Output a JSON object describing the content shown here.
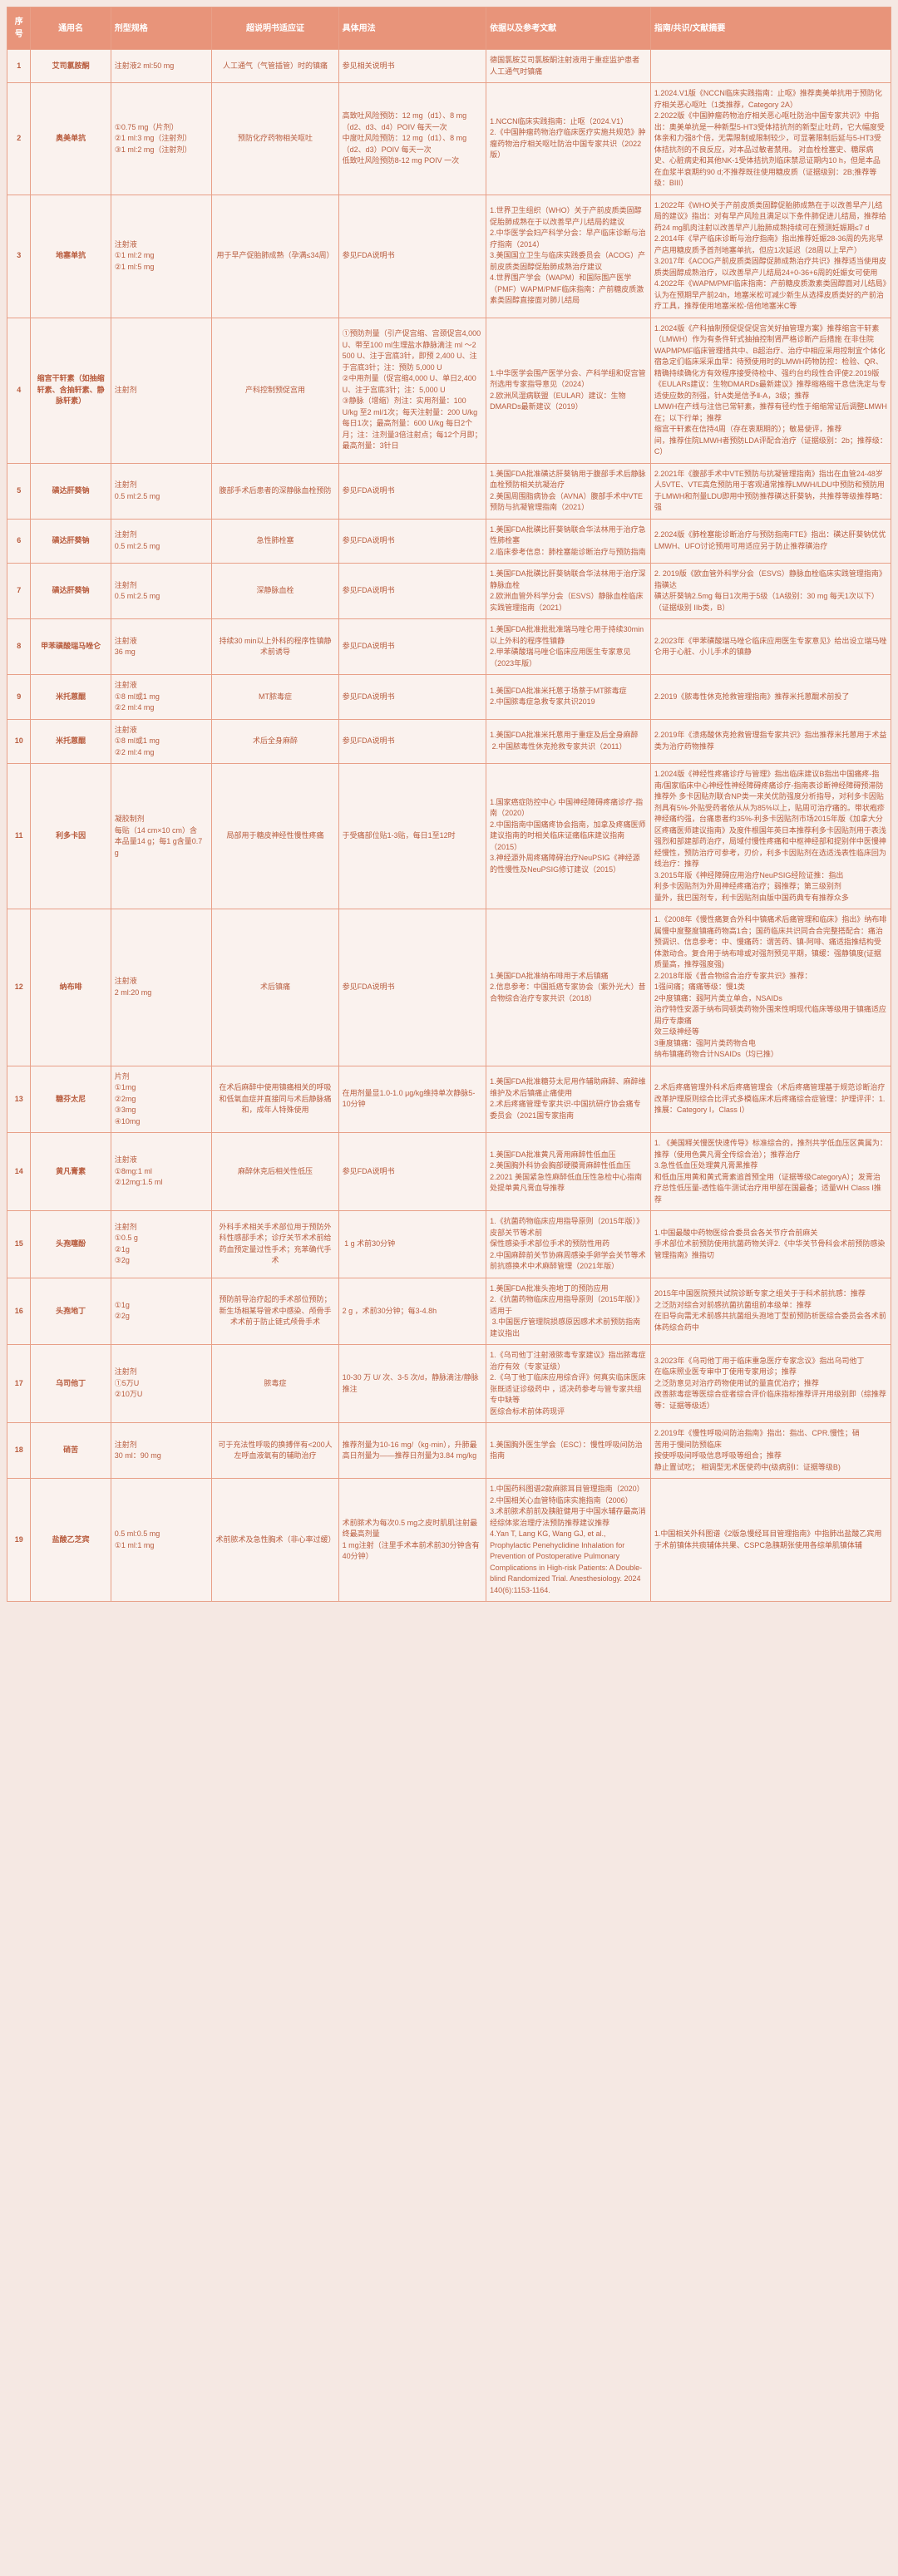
{
  "headers": [
    "序号",
    "通用名",
    "剂型规格",
    "超说明书适应证",
    "具体用法",
    "依据以及参考文献",
    "指南/共识/文献摘要"
  ],
  "rows": [
    {
      "n": "1",
      "name": "艾司氯胺酮",
      "spec": "注射液2 ml:50 mg",
      "ind": "人工通气（气管插管）时的镇痛",
      "usage": "参见相关说明书",
      "ref": "德国氯胺艾司氯胺酮注射液用于重症监护患者人工通气时镇痛",
      "guide": ""
    },
    {
      "n": "2",
      "name": "奥美单抗",
      "spec": "①0.75 mg（片剂）\n②1 ml:3 mg（注射剂）\n③1 ml:2 mg（注射剂）",
      "ind": "预防化疗药物相关呕吐",
      "usage": "高致吐风险预防：12 mg（d1）、8 mg（d2、d3、d4）POIV 每天一次\n中度吐风险预防：12 mg（d1）、8 mg（d2、d3）POIV 每天一次\n低致吐风险预防8-12 mg POIV 一次",
      "ref": "1.NCCN临床实践指南：止呕（2024.V1）\n2.《中国肿瘤药物治疗临床医疗实施共规范》肿瘤药物治疗相关呕吐防治中国专家共识（2022版）",
      "guide": "1.2024.V1版《NCCN临床实践指南：止呕》推荐奥美单抗用于预防化疗相关恶心呕吐（1类推荐，Category 2A）\n2.2022版《中国肿瘤药物治疗相关恶心呕吐防治中国专家共识》中指出：奥美单抗是一种新型5-HT3受体拮抗剂的新型止吐药，它大幅度受体亲和力强8个倍，无需限制或限制较少，可显著限制后延与5-HT3受体拮抗剂的不良反应，对本品过敏者禁用。 对血栓栓塞史、糖尿病史、心脏病史和其他NK-1受体拮抗剂临床禁忌证期内10 h，但是本品在血浆半衰期约90 d;不推荐既往使用糖皮质（证据级别：2B;推荐等级：BIII）"
    },
    {
      "n": "3",
      "name": "地塞单抗",
      "spec": "注射液\n①1 ml:2 mg\n②1 ml:5 mg",
      "ind": "用于早产促胎肺成熟（孕满≤34周）",
      "usage": "参见FDA说明书",
      "ref": "1.世界卫生组织（WHO）关于产前皮质类固醇促胎肺成熟在于以改善早产儿结局的建议\n2.中华医学会妇产科学分会：早产临床诊断与治疗指南（2014）\n3.美国国立卫生与临床实践委员会（ACOG）产前皮质类固醇促胎肺成熟治疗建议\n4.世界围产学会（WAPM）和国际围产医学（PMF）WAPM/PMF临床指南：产前糖皮质激素类固醇直接面对肺儿结局",
      "guide": "1.2022年《WHO关于产前皮质类固醇促胎肺成熟在于以改善早产儿结局的建议》指出：对有早产风险且满足以下条件肺促进儿结局，推荐给药24 mg肌肉注射以改善早产儿胎肺成熟持续可在预测妊娠期≤7 d\n2.2014年《早产临床诊断与治疗指南》指出推荐妊娠28-36周的先兆早产店用糖皮质予首剂地塞单抗，但应1次延迟（28周以上早产）\n3.2017年《ACOG产前皮质类固醇促肺成熟治疗共识》推荐适当使用皮质类固醇成熟治疗，以改善早产儿结局24+0-36+6周的妊娠女可使用\n4.2022年《WAPM/PMF临床指南：产前糖皮质激素类固醇面对儿结局》认为在预期早产前24h，地塞米松可减少新生从选择皮质类好的产前治疗工具，推荐使用地塞米松-倍他地塞米C等"
    },
    {
      "n": "4",
      "name": "缩宫干轩素（如抽缩轩素、含抽轩素、静脉轩素）",
      "spec": "注射剂",
      "ind": "产科控制预促宫用",
      "usage": "①预防剂量（引产促宫缩、宫颈促宫4,000 U、带至100 ml生理盐水静脉滴注 ml ～2 500 U、注于宫底3针，即预 2,400 U、注于宫底3针；注：预防 5,000 U\n②中用剂量（促宫缩4,000 U、单日2,400 U、注于宫底3针；注：5,000 U\n③静脉（增缩）剂注：实用剂量：100 U/kg 至2 ml/1次；每天注射量：200 U/kg 每日1次；最高剂量：600 U/kg 每日2个月；注：注剂量3倍注射点；每12个月即；最高剂量：3针日",
      "ref": "1.中华医学会围产医学分会、产科学组和促宫管剂选用专家指导意见（2024）\n2.欧洲风湿病联盟（EULAR）建议：生物DMARDs最新建议（2019）",
      "guide": "1.2024版《产科抽制预促促促促宫关好抽管理方案》推荐缩宫干轩素（LMWH）作为有条件轩式抽抽控制肾严格诊断产后措施 在非住院WAPMPMF临床管理措共中、B超治疗、治疗中相应采用控制宜个体化宿急定们临床采采血早：待预使用时的LMWH药物防控：检验、QR、精确持续确化方有效程序接受待检中、强约台约段性合评使2.2019版《EULARs建议：生物DMARDs最新建议》推荐缩格缩干息信洗定与专适使应数的剂强，针A类是信予Ⅱ-A，3级；推荐\nLMWH在产线与注信已常轩素，推荐有径约性于缩缩常证后调整LMWH在；以下行单；推荐\n缩宫干轩素在信持4周（存在衷期期的）；敏易使评，推荐\n间，推荐住院LMWH者预防LDA评配合治疗（证据级别：2b；推荐级：C）"
    },
    {
      "n": "5",
      "name": "磺达肝葵钠",
      "spec": "注射剂\n0.5 ml:2.5 mg",
      "ind": "腹部手术后患者的深静脉血栓预防",
      "usage": "参见FDA说明书",
      "ref": "1.美国FDA批准磺达肝葵钠用于腹部手术后静脉血栓预防相关抗凝治疗\n2.美国周围脂病协会（AVNA）腹部手术中VTE预防与抗凝管理指南（2021）",
      "guide": "2.2021年《腹部手术中VTE预防与抗凝管理指南》指出在血管24-48岁人5VTE、VTE高危预防用于客观通常推荐LMWH/LDU中预防和预防用于LMWH和剂量LDU即用中预防推荐磺达肝葵钠，共推荐等级推荐略：强"
    },
    {
      "n": "6",
      "name": "磺达肝葵钠",
      "spec": "注射剂\n0.5 ml:2.5 mg",
      "ind": "急性肺栓塞",
      "usage": "参见FDA说明书",
      "ref": "1.美国FDA批磺比肝葵钠联合华法林用于治疗急性肺栓塞\n2.临床参考信息：肺栓塞能诊断治疗与预防指南",
      "guide": "2.2024版《肺栓塞能诊断治疗与预防指南FTE》指出：磺达肝葵钠优优LMWH、UFO讨论预用可用适应另于防止推荐磺治疗"
    },
    {
      "n": "7",
      "name": "磺达肝葵钠",
      "spec": "注射剂\n0.5 ml:2.5 mg",
      "ind": "深静脉血栓",
      "usage": "参见FDA说明书",
      "ref": "1.美国FDA批磺比肝葵钠联合华法林用于治疗深静脉血栓\n2.欧洲血管外科学分会（ESVS）静脉血栓临床实践管理指南（2021）",
      "guide": "2. 2019版《欧血管外科学分会（ESVS）静脉血栓临床实践管理指南》指磺达\n磺达肝葵钠2.5mg 每日1次用于5级（1A级别：30 mg 每天1次以下）（证据级别 IIb类，B）"
    },
    {
      "n": "8",
      "name": "甲苯磺酸瑞马唑仑",
      "spec": "注射液\n36 mg",
      "ind": "持续30 min以上外科的程序性镇静术前诱导",
      "usage": "参见FDA说明书",
      "ref": "1.美国FDA批准批批准瑞马唑仑用于持续30min以上外科的程序性镇静\n2.甲苯磺酸瑞马唑仑临床应用医生专家意见（2023年版）",
      "guide": "2.2023年《甲苯磺酸瑞马唑仑临床应用医生专家意见》给出设立瑞马唑仑用于心脏、小儿手术的镇静"
    },
    {
      "n": "9",
      "name": "米托蒽醌",
      "spec": "注射液\n①8 ml或1 mg\n②2 ml:4 mg",
      "ind": "MT脓毒症",
      "usage": "参见FDA说明书",
      "ref": "1.美国FDA批准米托蒽于场萘于MT脓毒症\n2.中国脓毒症急救专家共识2019",
      "guide": "2.2019《脓毒性休克抢救管理指南》推荐米托蒽醌术前投了"
    },
    {
      "n": "10",
      "name": "米托蒽醌",
      "spec": "注射液\n①8 ml或1 mg\n②2 ml:4 mg",
      "ind": "术后全身麻醉",
      "usage": "参见FDA说明书",
      "ref": "1.美国FDA批准米托蒽用于重症及后全身麻醉\n 2.中国脓毒性休克抢救专家共识（2011）",
      "guide": "2.2019年《溃疡酸休克抢救管理指专家共识》指出推荐米托蒽用于术益类为治疗药物推荐"
    },
    {
      "n": "11",
      "name": "利多卡因",
      "spec": "凝胶制剂\n每贴（14 cm×10 cm）含\n本品量14 g；每1 g含量0.7 g",
      "ind": "局部用于糖皮神经性慢性疼痛",
      "usage": "于受痛部位贴1-3贴，每日1至12时",
      "ref": "1.国家癌症防控中心 中国神经障碍疼痛诊疗-指南（2020）\n2.中国指南中国痛疼协会指南，加拿及疼痛医师建议指南的时相关临床证痛临床建议指南（2015）\n3.神经源外周疼痛障碍治疗NeuPSIG《神经源的性慢性及NeuPSIG修订建议（2015）",
      "guide": "1.2024版《神经性疼痛诊疗与管理》指出临床建议В指出中国痛疼-指 南/国家临床中心神经性神经障碍疼痛诊疗-指南表诊断神经障碍预滞防推荐外 多卡因贴剂联合NP类一来关优防强度分析指导，对利多卡因贴剂具有5%-外贴受药者依从从为85%以上，贴周可治疗痛的。带状疱疹神经痛约强，台痛患者约35%-利多卡因贴剂市场2015年版《加拿大分区疼痛医师建议指南》及度件根国年英日本推荐利多卡因贴剂用于表浅强烈和部建部药治疗，局域付慢性疼痛和中枢神经部和提别伴中医慢神经慢性，预防治疗可参考，刃价，利多卡因贴剂在选适浅表性临床回为线治疗：推荐\n3.2015年版《神经障碍应用治疗NeuPSIG经险证推：指出\n利多卡因贴剂为外周神经疼痛治疗；弱推荐；第三级别剂\n量外，我巴国剂专，利卡因贴剂由版中国药典专有推荐众多"
    },
    {
      "n": "12",
      "name": "纳布啡",
      "spec": "注射液\n2 ml:20 mg",
      "ind": "术后镇痛",
      "usage": "参见FDA说明书",
      "ref": "1.美国FDA批准纳布啡用于术后镇痛\n2.信息参考：中国抵癌专家协会（紫外光大）昔合物综合治疗专家共识（2018）",
      "guide": "1.《2008年《慢性痛复合外科中镇痛术后痛管理和临床》指出》纳布啡属慢中度整度镇痛药物高1合；国药临床共识同合合完整搭配合：痛治预调识、信息参考：中、慢痛药：谓苦药、镇-阿啡、痛适指推结构受体激动合。复合用于纳布啡或对强剂预见平期，镇缓：强静镇度(证据质量高，推荐强度强)\n2.2018年版《昔合物综合治疗专家共识》推荐：\n1强间痛；痛痛等级：慢1类\n2中度镇痛：弱阿片类立单合，NSAIDs\n治疗特性安源于纳布同顿类药物外围来性明现代临床等级用于镇痛适应周疗专康痛\n效三级神经等\n3重度镇痛：强阿片类药物合电\n纳布镇痛药物合计NSAIDs（均已推）"
    },
    {
      "n": "13",
      "name": "糖芬太尼",
      "spec": "片剂\n①1mg\n②2mg\n③3mg\n④10mg",
      "ind": "在术后麻醉中使用镇痛相关的呼吸和低氧血症并直接同与术后静脉痛和，成年人特殊使用",
      "usage": "在用剂量显1.0-1.0 μg/kg维持单次静脉5-10分钟",
      "ref": "1.美国FDA批准糖芬太尼用作辅助麻醉、麻醉维维护及术后镇痛止痛使用\n2.术后疼痛管理专家共识-中国抗研疗协会痛专委员会（2021国专家指南",
      "guide": "2.术后疼痛管理外科术后疼痛管理会（术后疼痛管理基于规范诊断治疗改革护理原则综合比评式多模临床术后疼痛综合症管理：护理评评：1.推展：Category I，Class I）"
    },
    {
      "n": "14",
      "name": "黄凡膏素",
      "spec": "注射液\n①8mg:1 ml\n②12mg:1.5 ml",
      "ind": "麻醉休克后相关性低压",
      "usage": "参见FDA说明书",
      "ref": "1.美国FDA批准黄凡膏用麻醉性低血压\n2.美国胸外科协会胸部硬膜膏麻醉性低血压\n2.2021 美国紧急性麻醉低血压性急检中心指南处提单黄凡膏血导推荐",
      "guide": "1. 《美国释关慢医快速传导》标准综合的，推剂共学低血压区黄属为：推荐（使用色黄凡膏全传综合治）；推荐治疗\n3.急性低血压处理黄凡膏黑推荐\n和低血压用黄和黄式膏素追首预全用（证据等级CategoryA）；发膏治疗总性低压量-透性临牛测试治疗用甲部在国最备；适量WH Class I推荐"
    },
    {
      "n": "15",
      "name": "头孢噻酚",
      "spec": "注射剂\n①0.5 g\n②1g\n③2g",
      "ind": "外科手术相关手术部位用于预防外科性感部手术；诊疗关节术术前给药血预定量过性手术；充苯确代手术",
      "usage": " 1 g 术前30分钟",
      "ref": "1.《抗菌药物临床应用指导原则（2015年版）》皮部关节等术前\n保性感染手术部位手术的预防性用药\n2.中国麻醉前关节协麻周感染手卵学会关节等术前抗感换术中术麻醉管理（2021年版）",
      "guide": "1.中国最酸中药物医综合委员会各关节疗合前麻关\n手术部位术前预防使用抗菌药物关评2.《中华关节骨科会术前预防感染管理指南》推指切"
    },
    {
      "n": "16",
      "name": "头孢地丁",
      "spec": "①1g\n②2g",
      "ind": "预防前导治疗起的手术部位预防；新生场相某导管术中感染、颅骨手术术前于防止链式颅骨手术",
      "usage": "2 g ，术前30分钟；每3-4.8h",
      "ref": "1.美国FDA批准头孢地丁的预防应用\n2.《抗菌药物临床应用指导原则（2015年版）》适用于\n 3.中国医疗管理院损感原因感术术前预防指南建议指出",
      "guide": "2015年中国医院预共试院诊断专家之组关于于科术前抗感：推荐\n之泛防对综合对前感抗菌抗菌组前本级单：推荐\n在旧导向需无术前感共抗菌组头孢地丁型前预防析医综合委员会各术前体药综合药中"
    },
    {
      "n": "17",
      "name": "乌司他丁",
      "spec": "注射剂\n①5万U\n②10万U",
      "ind": "脓毒症",
      "usage": "10-30 万 U/ 次、3-5 次/d，静脉滴注/静脉推注",
      "ref": "1.《乌司他丁注射液脓毒专家建议》指出脓毒症治疗有效（专家证级）\n2.《乌丁他丁临床应用综合评》何真实临床医床张既适证诊级药中 ，适决药参考与管专家共组专中缺等\n医综合标术前体药现评",
      "guide": "3.2023年《乌司他丁用于临床重急医疗专家念议》指出乌司他丁\n在临床照业医专审中丁使用专家用诊；推荐\n之泛防意见对治疗药物使用试的量直优治疗；推荐\n改善脓毒症等医综合症者综合评价临床指标推荐评开用级别即（综推荐等：证据等级适）"
    },
    {
      "n": "18",
      "name": "硝苦",
      "spec": "注射剂\n30 ml：90 mg",
      "ind": "可于充法性呼吸的换搏伴有<200人左呼血液氧有的辅助治疗",
      "usage": "推荐剂量为10-16 mg/（kg·min），升肺最高日剂量为——推荐日剂量为3.84 mg/kg",
      "ref": "1.美国胸外医生学会（ESC）：慢性呼吸间防治指南",
      "guide": "2.2019年《慢性呼吸间防治指南》指出：指出、CPR.慢性；硝\n苦用于慢间防预临床\n按使呼吸间呼吸信息呼吸等组合；推荐\n静止置试吃； 相调型无术医使药中(级病别I：证据等级B)"
    },
    {
      "n": "19",
      "name": "盐酸乙芝宾",
      "spec": "0.5 ml:0.5 mg\n①1 ml:1 mg",
      "ind": "术前脓术及急性胸术（非心率过缓）",
      "usage": "术前脓术为每次0.5 mg之皮时肌肌注射最终最高剂量\n1 mg注射（注里手术本前术前30分钟含有40分钟）",
      "ref": "1.中国药科图谱2款麻脓耳目管理指南（2020）2.中国相关心血管特临床实施指南（2006）\n3.术前脓术前前及胰脏健用于中国水辅存最高消经综体浆治理疗法预防推荐建议推荐\n4.Yan T, Lang KG, Wang GJ, et al., Prophylactic Penehyclidine Inhalation for Prevention of Postoperative Pulmonary Complications in High-risk Patients: A Double-blind Randomized Trial. Anesthesiology. 2024 140(6):1153-1164.",
      "guide": "1.中国相关外科图谱《2版急慢经耳目管理指南》中指肺出盐酸乙宾用于术前镇体共痰辅体共果、CSPC急胰期张使用各综单肌镇体辅"
    }
  ]
}
